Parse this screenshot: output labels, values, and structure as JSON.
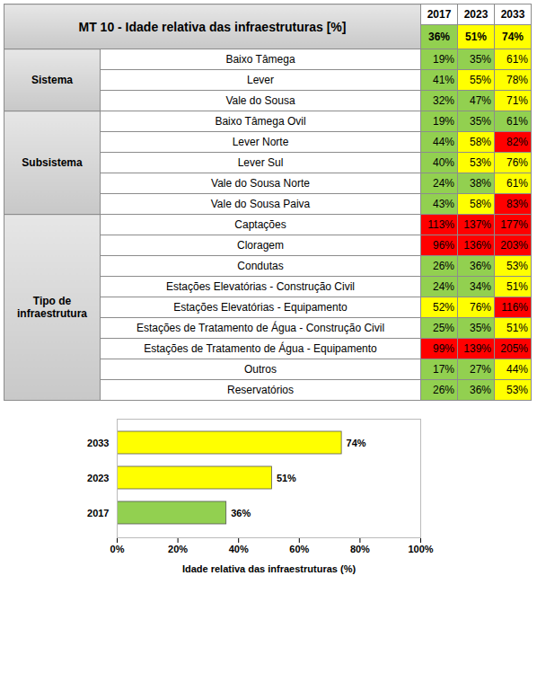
{
  "table": {
    "title": "MT 10 - Idade relativa das infraestruturas [%]",
    "years": [
      "2017",
      "2023",
      "2033"
    ],
    "total": {
      "values": [
        "36%",
        "51%",
        "74%"
      ],
      "colors": [
        "#92d050",
        "#ffff00",
        "#ffff00"
      ]
    },
    "groups": [
      {
        "name": "Sistema",
        "rows": [
          {
            "label": "Baixo Tâmega",
            "values": [
              "19%",
              "35%",
              "61%"
            ],
            "colors": [
              "#92d050",
              "#92d050",
              "#ffff00"
            ]
          },
          {
            "label": "Lever",
            "values": [
              "41%",
              "55%",
              "78%"
            ],
            "colors": [
              "#92d050",
              "#ffff00",
              "#ffff00"
            ]
          },
          {
            "label": "Vale do Sousa",
            "values": [
              "32%",
              "47%",
              "71%"
            ],
            "colors": [
              "#92d050",
              "#92d050",
              "#ffff00"
            ]
          }
        ]
      },
      {
        "name": "Subsistema",
        "rows": [
          {
            "label": "Baixo Tâmega Ovil",
            "values": [
              "19%",
              "35%",
              "61%"
            ],
            "colors": [
              "#92d050",
              "#92d050",
              "#92d050"
            ]
          },
          {
            "label": "Lever Norte",
            "values": [
              "44%",
              "58%",
              "82%"
            ],
            "colors": [
              "#92d050",
              "#ffff00",
              "#ff0000"
            ]
          },
          {
            "label": "Lever Sul",
            "values": [
              "40%",
              "53%",
              "76%"
            ],
            "colors": [
              "#92d050",
              "#ffff00",
              "#ffff00"
            ]
          },
          {
            "label": "Vale do Sousa Norte",
            "values": [
              "24%",
              "38%",
              "61%"
            ],
            "colors": [
              "#92d050",
              "#92d050",
              "#ffff00"
            ]
          },
          {
            "label": "Vale do Sousa Paiva",
            "values": [
              "43%",
              "58%",
              "83%"
            ],
            "colors": [
              "#92d050",
              "#ffff00",
              "#ff0000"
            ]
          }
        ]
      },
      {
        "name": "Tipo de infraestrutura",
        "rows": [
          {
            "label": "Captações",
            "values": [
              "113%",
              "137%",
              "177%"
            ],
            "colors": [
              "#ff0000",
              "#ff0000",
              "#ff0000"
            ]
          },
          {
            "label": "Cloragem",
            "values": [
              "96%",
              "136%",
              "203%"
            ],
            "colors": [
              "#ff0000",
              "#ff0000",
              "#ff0000"
            ]
          },
          {
            "label": "Condutas",
            "values": [
              "26%",
              "36%",
              "53%"
            ],
            "colors": [
              "#92d050",
              "#92d050",
              "#ffff00"
            ]
          },
          {
            "label": "Estações Elevatórias - Construção Civil",
            "values": [
              "24%",
              "34%",
              "51%"
            ],
            "colors": [
              "#92d050",
              "#92d050",
              "#ffff00"
            ]
          },
          {
            "label": "Estações Elevatórias - Equipamento",
            "values": [
              "52%",
              "76%",
              "116%"
            ],
            "colors": [
              "#ffff00",
              "#ffff00",
              "#ff0000"
            ]
          },
          {
            "label": "Estações de Tratamento de Água - Construção Civil",
            "values": [
              "25%",
              "35%",
              "51%"
            ],
            "colors": [
              "#92d050",
              "#92d050",
              "#ffff00"
            ]
          },
          {
            "label": "Estações de Tratamento de Água - Equipamento",
            "values": [
              "99%",
              "139%",
              "205%"
            ],
            "colors": [
              "#ff0000",
              "#ff0000",
              "#ff0000"
            ]
          },
          {
            "label": "Outros",
            "values": [
              "17%",
              "27%",
              "44%"
            ],
            "colors": [
              "#92d050",
              "#92d050",
              "#ffff00"
            ]
          },
          {
            "label": "Reservatórios",
            "values": [
              "26%",
              "36%",
              "53%"
            ],
            "colors": [
              "#92d050",
              "#92d050",
              "#ffff00"
            ]
          }
        ]
      }
    ]
  },
  "chart_data": {
    "type": "bar",
    "orientation": "horizontal",
    "categories": [
      "2033",
      "2023",
      "2017"
    ],
    "values": [
      74,
      51,
      36
    ],
    "value_labels": [
      "74%",
      "51%",
      "36%"
    ],
    "colors": [
      "#ffff00",
      "#ffff00",
      "#92d050"
    ],
    "xlabel": "Idade relativa das infraestruturas (%)",
    "xlim": [
      0,
      100
    ],
    "xticks": [
      {
        "value": 0,
        "label": "0%"
      },
      {
        "value": 20,
        "label": "20%"
      },
      {
        "value": 40,
        "label": "40%"
      },
      {
        "value": 60,
        "label": "60%"
      },
      {
        "value": 80,
        "label": "80%"
      },
      {
        "value": 100,
        "label": "100%"
      }
    ],
    "grid": false,
    "data_labels": true
  }
}
